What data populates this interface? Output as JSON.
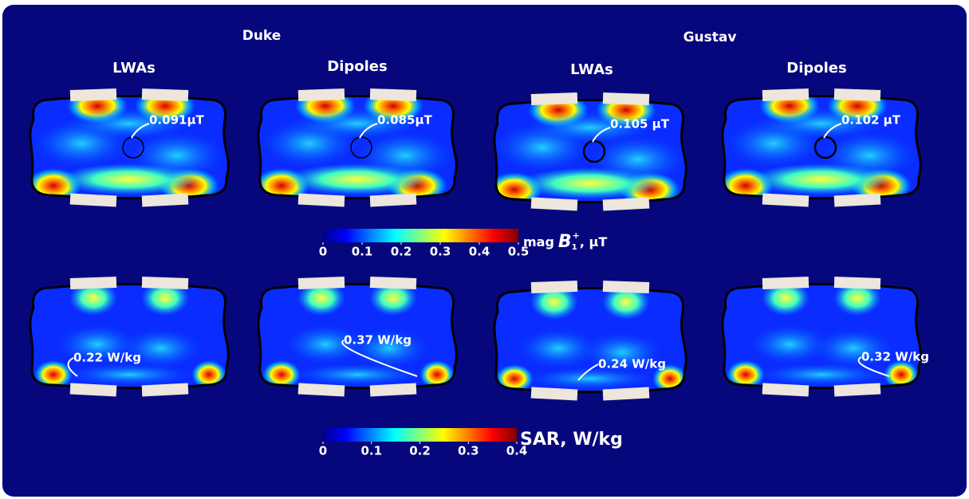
{
  "groups": [
    {
      "title": "Duke",
      "columns": [
        "LWAs",
        "Dipoles"
      ]
    },
    {
      "title": "Gustav",
      "columns": [
        "LWAs",
        "Dipoles"
      ]
    }
  ],
  "b1_map": {
    "labels": [
      "0.091µT",
      "0.085µT",
      "0.105 µT",
      "0.102 µT"
    ],
    "colorbar": {
      "lim": [
        0,
        0.5
      ],
      "ticks": [
        0,
        0.1,
        0.2,
        0.3,
        0.4,
        0.5
      ],
      "label": {
        "prefix": "mag",
        "symbol": "B",
        "subscript": "1",
        "superscript": "+",
        "unit": ", µT"
      }
    }
  },
  "sar_map": {
    "labels": [
      "0.22 W/kg",
      "0.37 W/kg",
      "0.24 W/kg",
      "0.32 W/kg"
    ],
    "colorbar": {
      "lim": [
        0,
        0.4
      ],
      "ticks": [
        0,
        0.1,
        0.2,
        0.3,
        0.4
      ],
      "label": "SAR, W/kg"
    }
  }
}
